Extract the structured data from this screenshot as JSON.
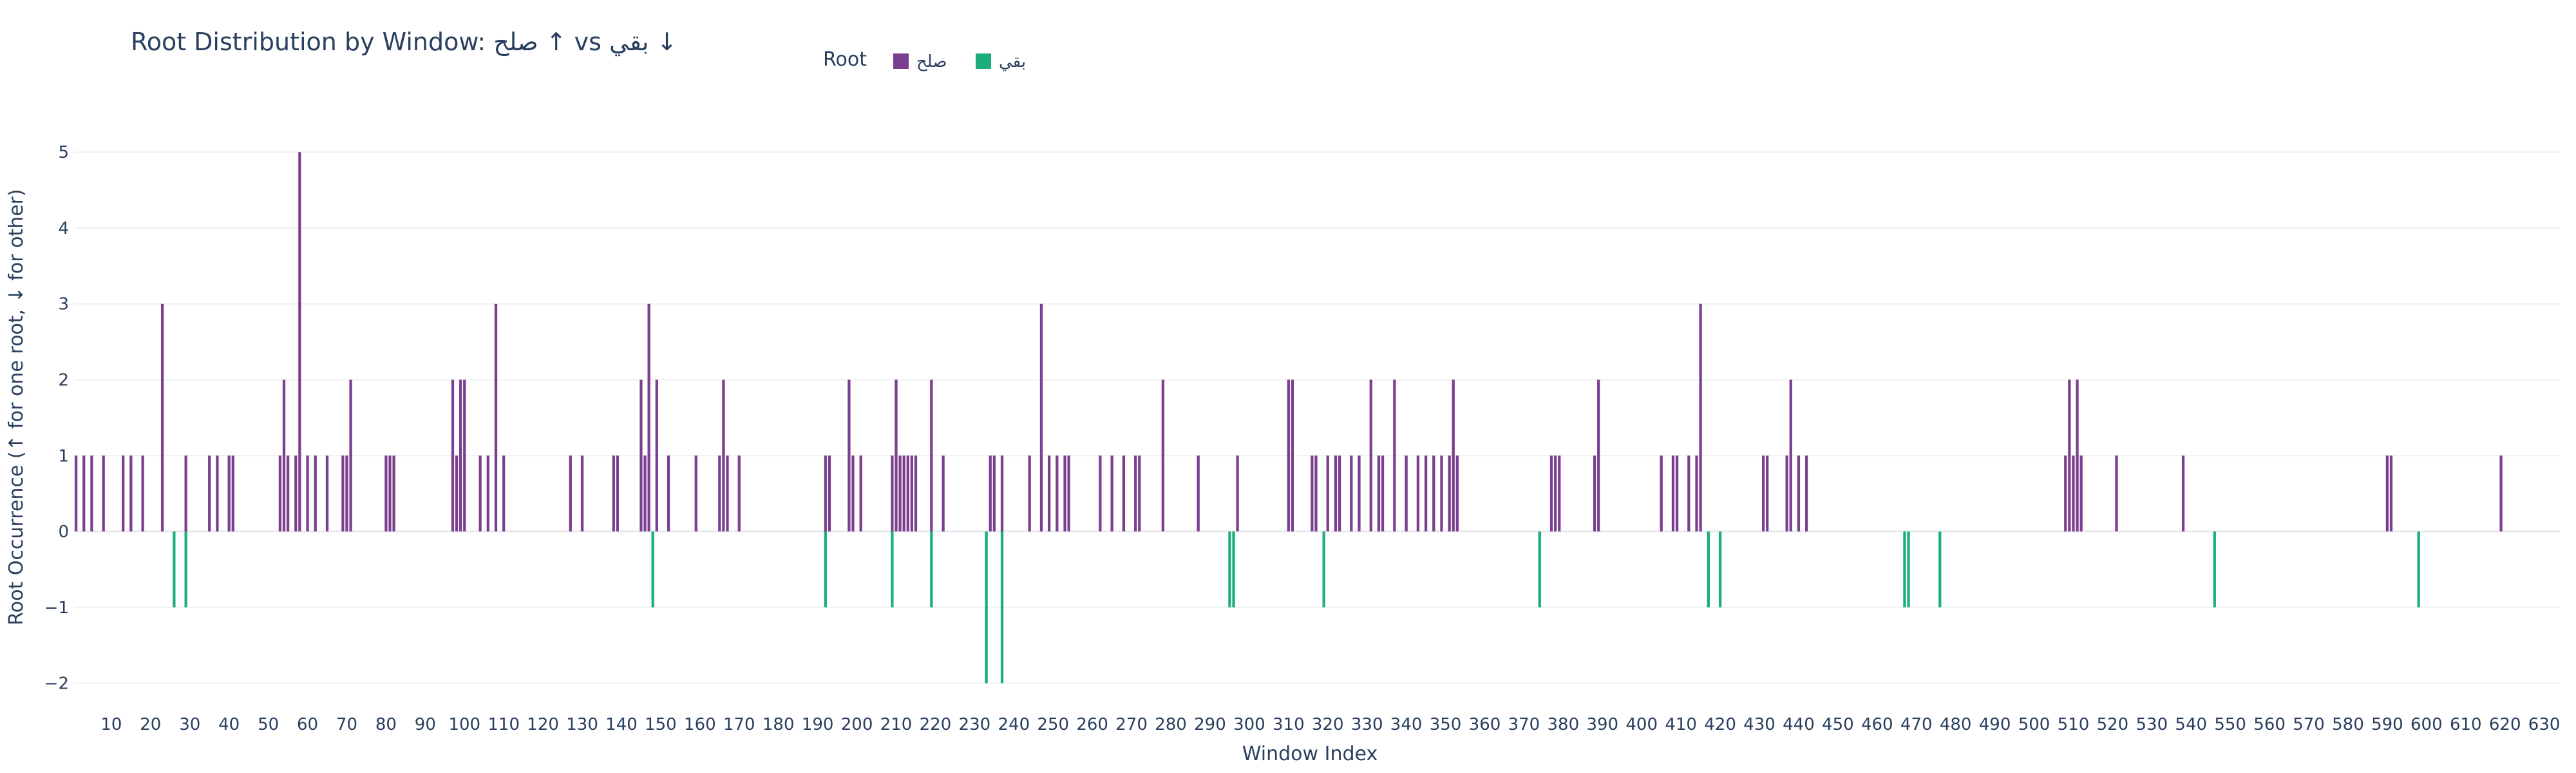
{
  "chart_data": {
    "type": "bar",
    "title": "Root Distribution by Window: صلح ↑ vs بقي ↓",
    "xlabel": "Window Index",
    "ylabel": "Root Occurrence (↑ for one root, ↓ for other)",
    "legend": {
      "title": "Root",
      "placement": "top-center"
    },
    "xlim": [
      0.5,
      634
    ],
    "ylim": [
      -2.25,
      5.35
    ],
    "xticks": [
      10,
      20,
      30,
      40,
      50,
      60,
      70,
      80,
      90,
      100,
      110,
      120,
      130,
      140,
      150,
      160,
      170,
      180,
      190,
      200,
      210,
      220,
      230,
      240,
      250,
      260,
      270,
      280,
      290,
      300,
      310,
      320,
      330,
      340,
      350,
      360,
      370,
      380,
      390,
      400,
      410,
      420,
      430,
      440,
      450,
      460,
      470,
      480,
      490,
      500,
      510,
      520,
      530,
      540,
      550,
      560,
      570,
      580,
      590,
      600,
      610,
      620,
      630
    ],
    "yticks": [
      -2,
      -1,
      0,
      1,
      2,
      3,
      4,
      5
    ],
    "grid": true,
    "series": [
      {
        "name": "صلح",
        "color": "#7b3f8f",
        "x": [
          1,
          3,
          5,
          8,
          13,
          15,
          18,
          23,
          29,
          35,
          37,
          40,
          41,
          53,
          54,
          55,
          57,
          58,
          60,
          62,
          65,
          69,
          70,
          71,
          80,
          81,
          82,
          97,
          98,
          99,
          100,
          104,
          106,
          108,
          110,
          127,
          130,
          138,
          139,
          145,
          146,
          147,
          149,
          152,
          159,
          165,
          166,
          167,
          170,
          192,
          193,
          198,
          199,
          201,
          209,
          210,
          211,
          212,
          213,
          214,
          215,
          219,
          222,
          234,
          235,
          237,
          244,
          247,
          249,
          251,
          253,
          254,
          262,
          265,
          268,
          271,
          272,
          278,
          287,
          297,
          310,
          311,
          316,
          317,
          320,
          322,
          323,
          326,
          328,
          331,
          333,
          334,
          337,
          340,
          343,
          345,
          347,
          349,
          351,
          352,
          353,
          377,
          378,
          379,
          388,
          389,
          405,
          408,
          409,
          412,
          414,
          415,
          431,
          432,
          437,
          438,
          440,
          442,
          508,
          509,
          510,
          511,
          512,
          521,
          538,
          590,
          591,
          619
        ],
        "values": [
          1,
          1,
          1,
          1,
          1,
          1,
          1,
          3,
          1,
          1,
          1,
          1,
          1,
          1,
          2,
          1,
          1,
          5,
          1,
          1,
          1,
          1,
          1,
          2,
          1,
          1,
          1,
          2,
          1,
          2,
          2,
          1,
          1,
          3,
          1,
          1,
          1,
          1,
          1,
          2,
          1,
          3,
          2,
          1,
          1,
          1,
          2,
          1,
          1,
          1,
          1,
          2,
          1,
          1,
          1,
          2,
          1,
          1,
          1,
          1,
          1,
          2,
          1,
          1,
          1,
          1,
          1,
          3,
          1,
          1,
          1,
          1,
          1,
          1,
          1,
          1,
          1,
          2,
          1,
          1,
          2,
          2,
          1,
          1,
          1,
          1,
          1,
          1,
          1,
          2,
          1,
          1,
          2,
          1,
          1,
          1,
          1,
          1,
          1,
          2,
          1,
          1,
          1,
          1,
          1,
          2,
          1,
          1,
          1,
          1,
          1,
          3,
          1,
          1,
          1,
          2,
          1,
          1,
          1,
          2,
          1,
          2,
          1,
          1,
          1,
          1,
          1,
          1
        ]
      },
      {
        "name": "بقي",
        "color": "#1aaf7a",
        "x": [
          26,
          29,
          148,
          192,
          209,
          219,
          233,
          237,
          295,
          296,
          319,
          374,
          417,
          420,
          467,
          468,
          476,
          546,
          598
        ],
        "values": [
          -1,
          -1,
          -1,
          -1,
          -1,
          -1,
          -2,
          -2,
          -1,
          -1,
          -1,
          -1,
          -1,
          -1,
          -1,
          -1,
          -1,
          -1,
          -1
        ]
      }
    ]
  }
}
